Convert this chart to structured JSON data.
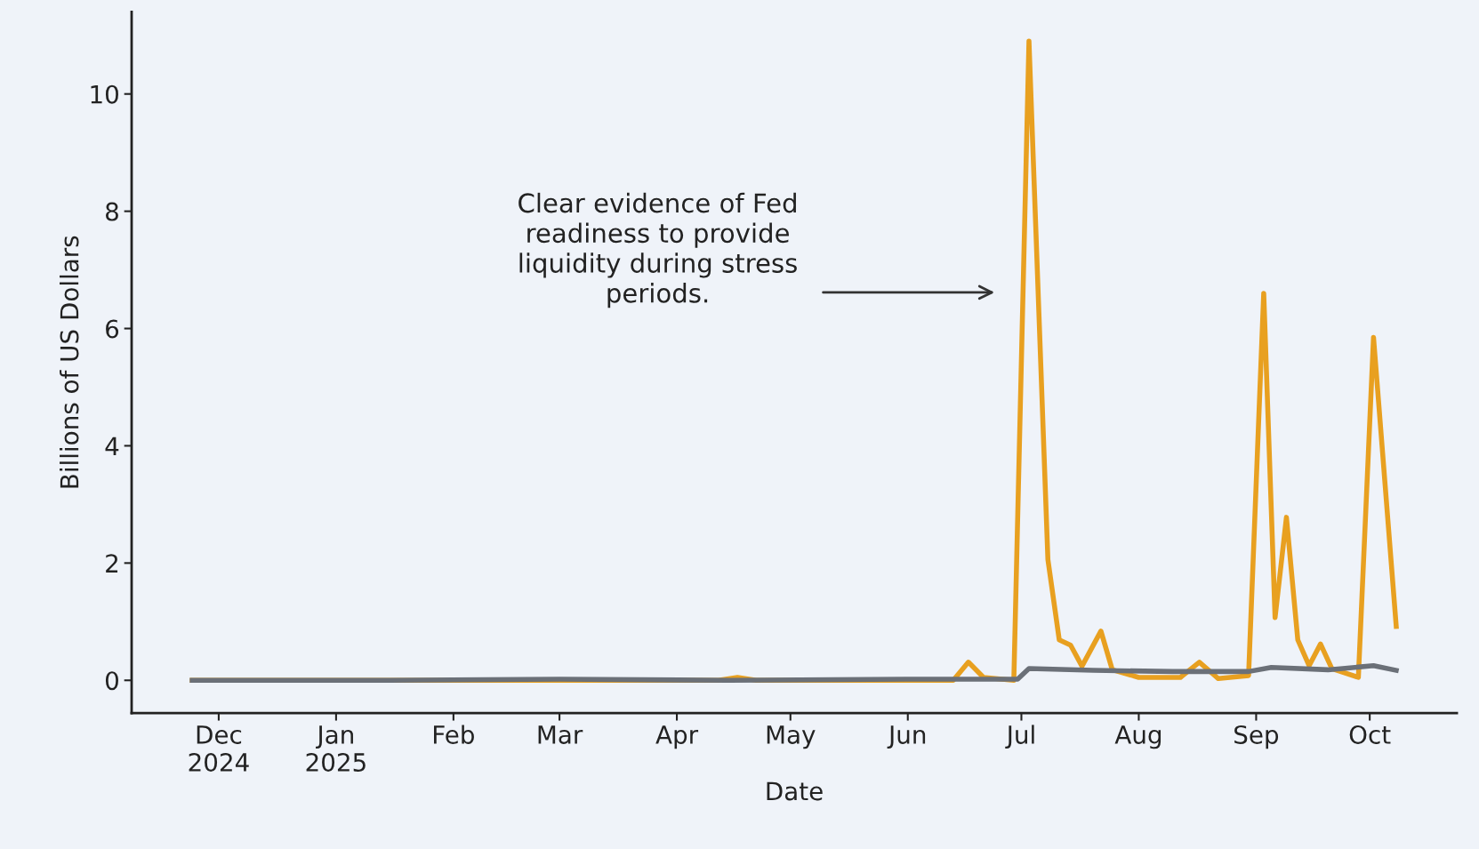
{
  "chart_data": {
    "type": "line",
    "xlabel": "Date",
    "ylabel": "Billions of US Dollars",
    "xlim": [
      "2024-11-08",
      "2025-10-24"
    ],
    "ylim": [
      -0.56,
      11.4
    ],
    "yticks": [
      0,
      2,
      4,
      6,
      8,
      10
    ],
    "xticks": [
      {
        "value": "2024-12-01",
        "label": "Dec\n2024"
      },
      {
        "value": "2025-01-01",
        "label": "Jan\n2025"
      },
      {
        "value": "2025-02-01",
        "label": "Feb"
      },
      {
        "value": "2025-03-01",
        "label": "Mar"
      },
      {
        "value": "2025-04-01",
        "label": "Apr"
      },
      {
        "value": "2025-05-01",
        "label": "May"
      },
      {
        "value": "2025-06-01",
        "label": "Jun"
      },
      {
        "value": "2025-07-01",
        "label": "Jul"
      },
      {
        "value": "2025-08-01",
        "label": "Aug"
      },
      {
        "value": "2025-09-01",
        "label": "Sep"
      },
      {
        "value": "2025-10-01",
        "label": "Oct"
      }
    ],
    "grid": false,
    "series": [
      {
        "color": "#e8a020",
        "x": [
          "2024-11-24",
          "2025-01-15",
          "2025-03-01",
          "2025-04-12",
          "2025-04-17",
          "2025-04-22",
          "2025-06-01",
          "2025-06-13",
          "2025-06-17",
          "2025-06-21",
          "2025-06-29",
          "2025-07-03",
          "2025-07-08",
          "2025-07-11",
          "2025-07-14",
          "2025-07-17",
          "2025-07-22",
          "2025-07-25",
          "2025-08-01",
          "2025-08-12",
          "2025-08-17",
          "2025-08-22",
          "2025-08-30",
          "2025-09-03",
          "2025-09-06",
          "2025-09-09",
          "2025-09-12",
          "2025-09-15",
          "2025-09-18",
          "2025-09-21",
          "2025-09-28",
          "2025-10-02",
          "2025-10-08"
        ],
        "values": [
          0,
          0,
          0,
          0,
          0.05,
          0,
          0,
          0,
          0.31,
          0.05,
          0,
          10.9,
          2.06,
          0.69,
          0.6,
          0.24,
          0.84,
          0.18,
          0.05,
          0.05,
          0.31,
          0.03,
          0.08,
          6.6,
          1.07,
          2.78,
          0.69,
          0.25,
          0.62,
          0.2,
          0.05,
          5.85,
          0.92
        ]
      },
      {
        "color": "#6b7078",
        "x": [
          "2024-11-24",
          "2025-01-15",
          "2025-03-01",
          "2025-04-15",
          "2025-06-01",
          "2025-06-30",
          "2025-07-03",
          "2025-07-20",
          "2025-08-10",
          "2025-08-30",
          "2025-09-05",
          "2025-09-20",
          "2025-10-02",
          "2025-10-08"
        ],
        "values": [
          0,
          0,
          0.02,
          0,
          0.02,
          0.02,
          0.2,
          0.17,
          0.15,
          0.15,
          0.22,
          0.18,
          0.25,
          0.17
        ]
      }
    ],
    "annotations": [
      "Clear evidence of Fed\nreadiness to provide\nliquidity during stress\nperiods."
    ]
  }
}
